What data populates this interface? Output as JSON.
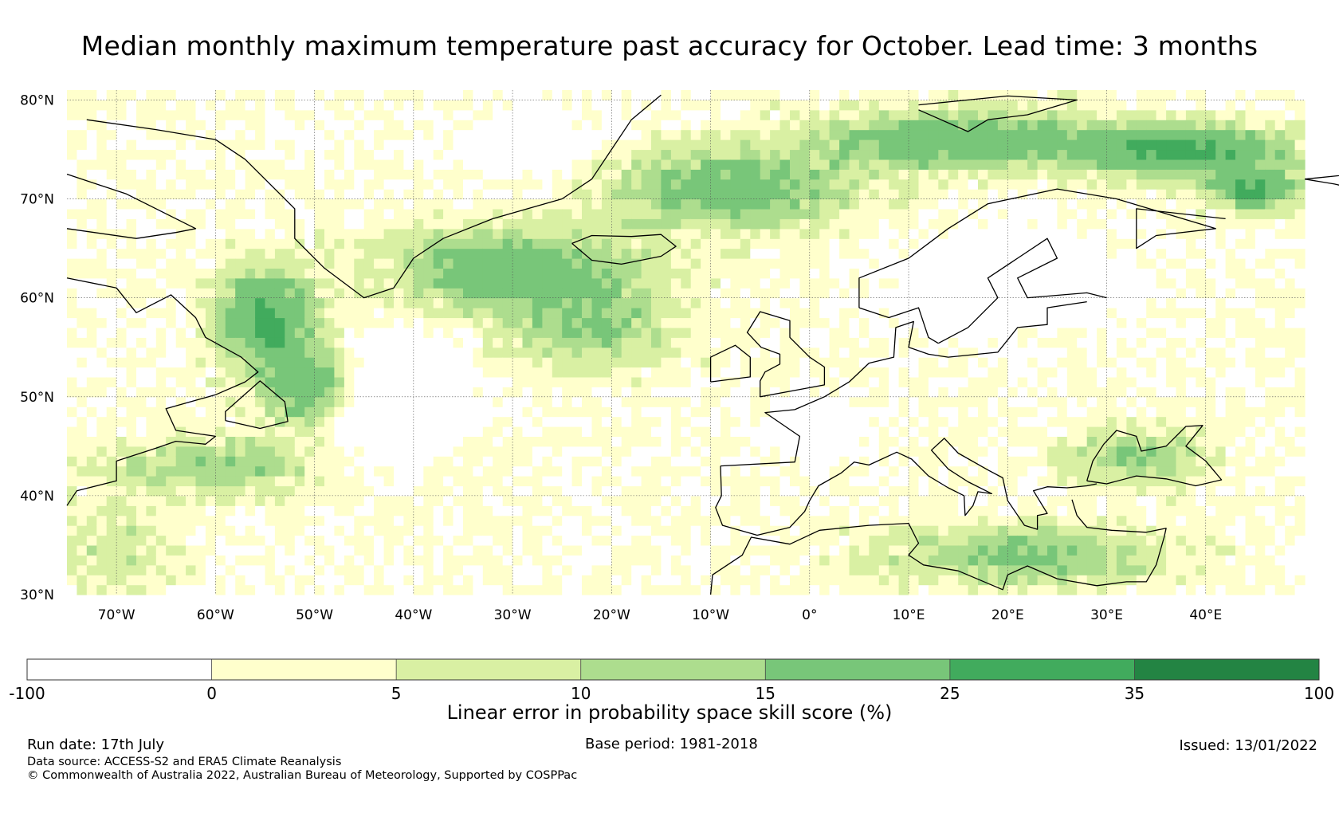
{
  "title": "Median monthly maximum temperature past accuracy for October. Lead time: 3 months",
  "map": {
    "lat_labels": [
      "80°N",
      "70°N",
      "60°N",
      "50°N",
      "40°N",
      "30°N"
    ],
    "lat_values": [
      80,
      70,
      60,
      50,
      40,
      30
    ],
    "lon_labels": [
      "70°W",
      "60°W",
      "50°W",
      "40°W",
      "30°W",
      "20°W",
      "10°W",
      "0°",
      "10°E",
      "20°E",
      "30°E",
      "40°E"
    ],
    "lon_values": [
      -70,
      -60,
      -50,
      -40,
      -30,
      -20,
      -10,
      0,
      10,
      20,
      30,
      40
    ],
    "extent": {
      "lon_min": -75,
      "lon_max": 50,
      "lat_min": 30,
      "lat_max": 81
    }
  },
  "colorbar": {
    "boundaries": [
      "-100",
      "0",
      "5",
      "10",
      "15",
      "25",
      "35",
      "100"
    ],
    "colors": [
      "#ffffff",
      "#ffffcc",
      "#d9f0a3",
      "#addd8e",
      "#78c679",
      "#41ab5d",
      "#238443"
    ],
    "label": "Linear error in probability space skill score (%)"
  },
  "footer": {
    "run_date": "Run date: 17th July",
    "base_period": "Base period: 1981-2018",
    "issued": "Issued: 13/01/2022",
    "data_source": "Data source: ACCESS-S2 and ERA5 Climate Reanalysis",
    "copyright": "© Commonwealth of Australia 2022, Australian Bureau of Meteorology, Supported by COSPPac"
  }
}
